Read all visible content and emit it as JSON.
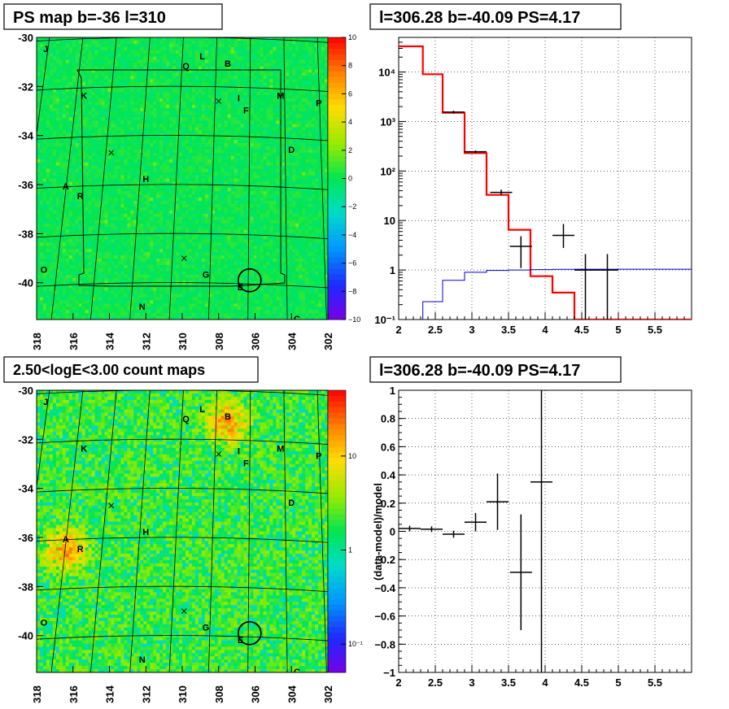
{
  "panels": {
    "map_top": {
      "title": "PS map b=-36 l=310",
      "colorbar_ticks": [
        "10",
        "8",
        "6",
        "4",
        "2",
        "0",
        "−2",
        "−4",
        "−6",
        "−8",
        "−10"
      ]
    },
    "map_bottom": {
      "title": "2.50<logE<3.00 count maps",
      "colorbar_ticks": [
        "10",
        "1",
        "10⁻¹"
      ]
    },
    "spec_top": {
      "title": "l=306.28 b=-40.09 PS=4.17"
    },
    "spec_bottom": {
      "title": "l=306.28 b=-40.09 PS=4.17",
      "ylabel": "(data-model)/model"
    }
  },
  "map_axes": {
    "x_ticks": [
      "318",
      "316",
      "314",
      "312",
      "310",
      "308",
      "306",
      "304",
      "302"
    ],
    "y_ticks": [
      "-30",
      "-32",
      "-34",
      "-36",
      "-38",
      "-40"
    ]
  },
  "map_sources": [
    {
      "id": "J"
    },
    {
      "id": "L"
    },
    {
      "id": "Q"
    },
    {
      "id": "B"
    },
    {
      "id": "K"
    },
    {
      "id": "I"
    },
    {
      "id": "M"
    },
    {
      "id": "P"
    },
    {
      "id": "F"
    },
    {
      "id": "D"
    },
    {
      "id": "H"
    },
    {
      "id": "A"
    },
    {
      "id": "R"
    },
    {
      "id": "O"
    },
    {
      "id": "G"
    },
    {
      "id": "E"
    },
    {
      "id": "N"
    },
    {
      "id": "C"
    }
  ],
  "chart_data": [
    {
      "type": "heatmap",
      "title": "PS map b=-36 l=310",
      "xlim": [
        318,
        302
      ],
      "ylim": [
        -41.5,
        -30
      ],
      "zlim": [
        -10,
        10
      ],
      "colorscale": "rainbow",
      "background_level": 0
    },
    {
      "type": "line",
      "title": "l=306.28 b=-40.09 PS=4.17",
      "xscale": "linear",
      "yscale": "log",
      "xlim": [
        2,
        6
      ],
      "ylim": [
        0.1,
        50000
      ],
      "x_ticks": [
        "2",
        "2.5",
        "3",
        "3.5",
        "4",
        "4.5",
        "5",
        "5.5"
      ],
      "y_ticks": [
        "10⁻¹",
        "1",
        "10",
        "10²",
        "10³",
        "10⁴"
      ],
      "grid": true,
      "series": [
        {
          "style": "red-histogram",
          "color": "#ff0000",
          "edges": [
            2,
            2.33,
            2.6,
            2.9,
            3.2,
            3.5,
            3.8,
            4.1,
            4.4,
            6
          ],
          "values": [
            33000,
            9000,
            1500,
            230,
            33,
            6.5,
            0.75,
            0.35,
            0.1
          ]
        },
        {
          "style": "blue-histogram",
          "color": "#0000cc",
          "edges": [
            2,
            2.33,
            2.6,
            2.9,
            3.2,
            3.5,
            3.8,
            4.1,
            4.4,
            6
          ],
          "values": [
            0.08,
            0.23,
            0.62,
            0.9,
            0.98,
            1.0,
            1.02,
            1.03,
            1.04
          ]
        },
        {
          "style": "points",
          "color": "#000000",
          "points": [
            {
              "x": 2.75,
              "y": 1550,
              "dx": 0.15,
              "ylo": 1450,
              "yhi": 1650
            },
            {
              "x": 3.05,
              "y": 245,
              "dx": 0.15,
              "ylo": 230,
              "yhi": 260
            },
            {
              "x": 3.4,
              "y": 37,
              "dx": 0.15,
              "ylo": 33,
              "yhi": 42
            },
            {
              "x": 3.67,
              "y": 3,
              "dx": 0.15,
              "ylo": 1.1,
              "yhi": 4.8
            },
            {
              "x": 4.25,
              "y": 5,
              "dx": 0.15,
              "ylo": 2.8,
              "yhi": 8.5
            },
            {
              "x": 4.55,
              "y": 1,
              "dx": 0.15,
              "ylo": 0.1,
              "yhi": 2.1
            },
            {
              "x": 4.85,
              "y": 1,
              "dx": 0.15,
              "ylo": 0.1,
              "yhi": 2.1
            }
          ]
        }
      ]
    },
    {
      "type": "heatmap",
      "title": "2.50<logE<3.00 count maps",
      "xlim": [
        318,
        302
      ],
      "ylim": [
        -41.5,
        -30
      ],
      "zscale": "log",
      "zlim": [
        0.05,
        50
      ],
      "colorscale": "rainbow",
      "hotspots": [
        {
          "lon": 316.4,
          "lat": -36.5,
          "label": "A"
        },
        {
          "lon": 307.5,
          "lat": -31.3,
          "label": "B"
        }
      ]
    },
    {
      "type": "scatter",
      "title": "l=306.28 b=-40.09 PS=4.17",
      "ylabel": "(data-model)/model",
      "xlim": [
        2,
        6
      ],
      "ylim": [
        -1,
        1
      ],
      "x_ticks": [
        "2",
        "2.5",
        "3",
        "3.5",
        "4",
        "4.5",
        "5",
        "5.5"
      ],
      "y_ticks": [
        "−1",
        "−0.8",
        "−0.6",
        "−0.4",
        "−0.2",
        "0",
        "0.2",
        "0.4",
        "0.6",
        "0.8",
        "1"
      ],
      "grid": true,
      "points": [
        {
          "x": 2.15,
          "y": 0.02,
          "dx": 0.15,
          "ylo": 0.0,
          "yhi": 0.04
        },
        {
          "x": 2.45,
          "y": 0.015,
          "dx": 0.15,
          "ylo": -0.005,
          "yhi": 0.035
        },
        {
          "x": 2.75,
          "y": -0.02,
          "dx": 0.15,
          "ylo": -0.045,
          "yhi": 0.005
        },
        {
          "x": 3.05,
          "y": 0.065,
          "dx": 0.15,
          "ylo": 0.0,
          "yhi": 0.13
        },
        {
          "x": 3.35,
          "y": 0.21,
          "dx": 0.15,
          "ylo": 0.01,
          "yhi": 0.41
        },
        {
          "x": 3.67,
          "y": -0.29,
          "dx": 0.15,
          "ylo": -0.7,
          "yhi": 0.12
        },
        {
          "x": 3.95,
          "y": 0.35,
          "dx": 0.15,
          "ylo": -1.0,
          "yhi": 1.0
        }
      ]
    }
  ]
}
